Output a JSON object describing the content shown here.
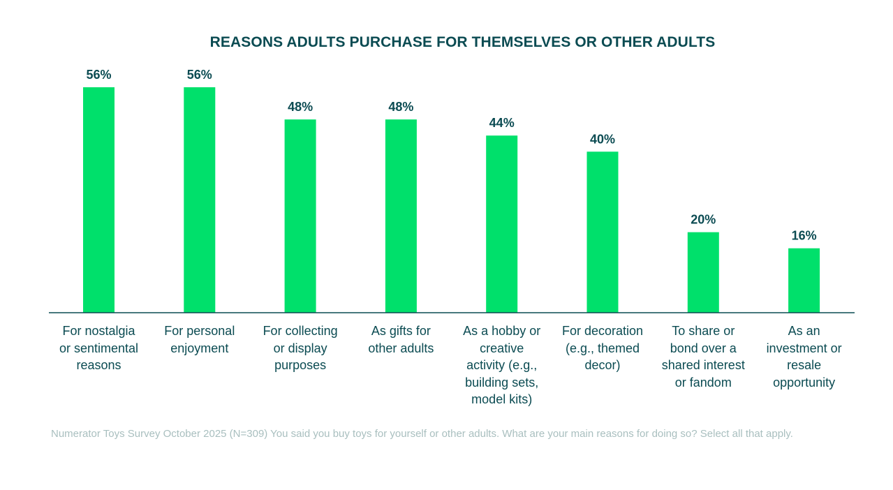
{
  "chart_data": {
    "type": "bar",
    "title": "REASONS ADULTS PURCHASE FOR THEMSELVES OR OTHER ADULTS",
    "xlabel": "",
    "ylabel": "",
    "ylim": [
      0,
      56
    ],
    "grid": false,
    "legend": "none",
    "categories": [
      "For nostalgia or sentimental reasons",
      "For personal enjoyment",
      "For collecting or display purposes",
      "As gifts for other adults",
      "As a hobby or creative activity (e.g., building sets, model kits)",
      "For decoration (e.g., themed decor)",
      "To share or bond over a shared interest or fandom",
      "As an investment or resale opportunity"
    ],
    "category_lines": [
      [
        "For nostalgia",
        "or sentimental",
        "reasons"
      ],
      [
        "For personal",
        "enjoyment"
      ],
      [
        "For collecting",
        "or display",
        "purposes"
      ],
      [
        "As gifts for",
        "other adults"
      ],
      [
        "As a hobby or",
        "creative",
        "activity (e.g.,",
        "building sets,",
        "model kits)"
      ],
      [
        "For decoration",
        "(e.g., themed",
        "decor)"
      ],
      [
        "To share or",
        "bond over a",
        "shared interest",
        "or fandom"
      ],
      [
        "As an",
        "investment or",
        "resale",
        "opportunity"
      ]
    ],
    "values": [
      56,
      56,
      48,
      48,
      44,
      40,
      20,
      16
    ],
    "data_labels": [
      "56%",
      "56%",
      "48%",
      "48%",
      "44%",
      "40%",
      "20%",
      "16%"
    ],
    "unit": "%",
    "colors": {
      "bar": "#00e06b",
      "text": "#0b4b52",
      "baseline": "#0b4b52",
      "source": "#a9bfbf"
    }
  },
  "source_note": "Numerator Toys Survey October 2025 (N=309) You said you buy toys for yourself or other adults. What are your main reasons for doing so? Select all that apply."
}
